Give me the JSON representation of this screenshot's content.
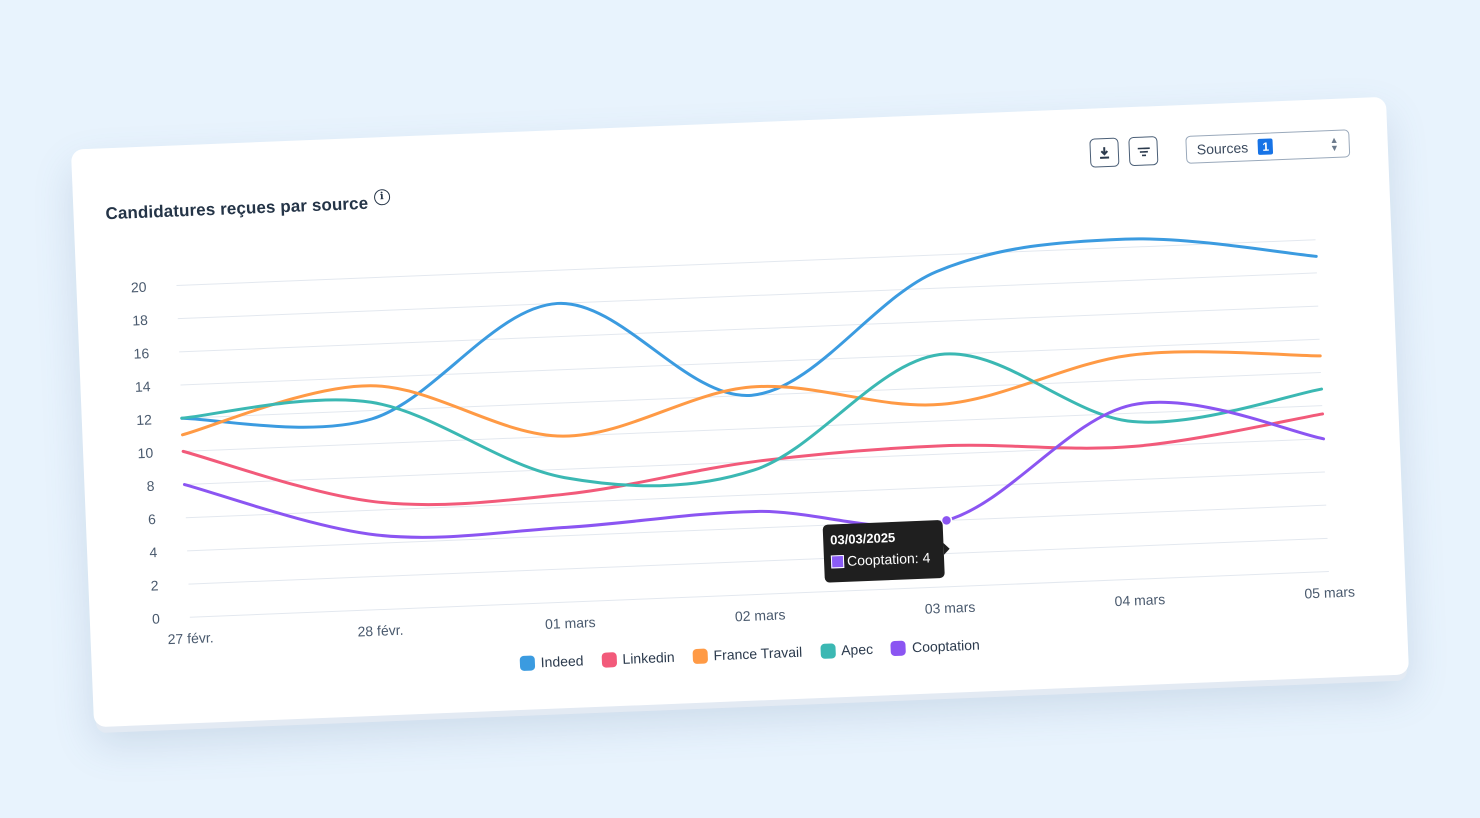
{
  "card": {
    "title": "Candidatures reçues par source",
    "info_icon": "info-icon"
  },
  "toolbar": {
    "download_icon": "download-icon",
    "filter_icon": "filter-icon",
    "sources_label": "Sources",
    "sources_count": "1"
  },
  "tooltip": {
    "date": "03/03/2025",
    "series": "Cooptation",
    "text": "Cooptation: 4"
  },
  "chart_data": {
    "type": "line",
    "title": "Candidatures reçues par source",
    "xlabel": "",
    "ylabel": "",
    "categories": [
      "27 févr.",
      "28 févr.",
      "01 mars",
      "02 mars",
      "03 mars",
      "04 mars",
      "05 mars"
    ],
    "yticks": [
      "0",
      "2",
      "4",
      "6",
      "8",
      "10",
      "12",
      "14",
      "16",
      "18",
      "20"
    ],
    "ylim": [
      0,
      20
    ],
    "grid": true,
    "legend": "bottom",
    "series": [
      {
        "name": "Indeed",
        "color": "#3b9be0",
        "values": [
          12,
          11.5,
          18,
          12,
          19,
          20.5,
          19
        ]
      },
      {
        "name": "Linkedin",
        "color": "#f25a7a",
        "values": [
          10,
          6.5,
          6.5,
          8,
          8.5,
          8,
          9.5
        ]
      },
      {
        "name": "France Travail",
        "color": "#ff9a45",
        "values": [
          11,
          13.5,
          10,
          12.5,
          11,
          13.5,
          13
        ]
      },
      {
        "name": "Apec",
        "color": "#3bb8b3",
        "values": [
          12,
          12.5,
          7.5,
          7.5,
          14,
          9.5,
          11
        ]
      },
      {
        "name": "Cooptation",
        "color": "#8b55f2",
        "values": [
          8,
          4.5,
          4.5,
          5,
          4,
          10.5,
          8
        ]
      }
    ]
  }
}
